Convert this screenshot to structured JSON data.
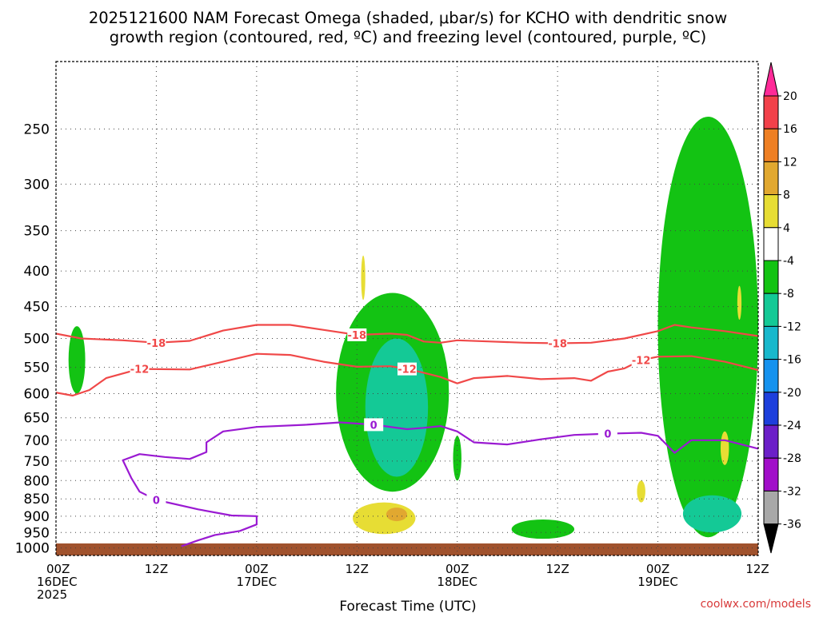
{
  "title_line1": "2025121600 NAM Forecast Omega (shaded, μbar/s) for KCHO with dendritic snow",
  "title_line2": "growth region (contoured, red, ºC) and freezing level (contoured, purple, ºC)",
  "credit": "coolwx.com/models",
  "chart_data": {
    "type": "time-height cross-section",
    "xlabel": "Forecast Time (UTC)",
    "x_ticks": [
      {
        "hour": 0,
        "line1": "00Z",
        "line2": "16DEC",
        "line3": "2025"
      },
      {
        "hour": 12,
        "line1": "12Z",
        "line2": "",
        "line3": ""
      },
      {
        "hour": 24,
        "line1": "00Z",
        "line2": "17DEC",
        "line3": ""
      },
      {
        "hour": 36,
        "line1": "12Z",
        "line2": "",
        "line3": ""
      },
      {
        "hour": 48,
        "line1": "00Z",
        "line2": "18DEC",
        "line3": ""
      },
      {
        "hour": 60,
        "line1": "12Z",
        "line2": "",
        "line3": ""
      },
      {
        "hour": 72,
        "line1": "00Z",
        "line2": "19DEC",
        "line3": ""
      },
      {
        "hour": 84,
        "line1": "12Z",
        "line2": "",
        "line3": ""
      }
    ],
    "xlim_hours": [
      0,
      84
    ],
    "y_ticks_hPa": [
      250,
      300,
      350,
      400,
      450,
      500,
      550,
      600,
      650,
      700,
      750,
      800,
      850,
      900,
      950,
      1000
    ],
    "ylim_hPa": [
      200,
      1025
    ],
    "y_scale": "log-pressure (inverted)",
    "grid": true,
    "colorbar": {
      "unit": "μbar/s",
      "labels": [
        "20",
        "16",
        "12",
        "8",
        "4",
        "-4",
        "-8",
        "-12",
        "-16",
        "-20",
        "-24",
        "-28",
        "-32",
        "-36"
      ],
      "colors": [
        "#ff2a98",
        "#f2414a",
        "#ee7f23",
        "#e1a830",
        "#e7dd34",
        "#ffffff",
        "#13c313",
        "#14c996",
        "#18b8cc",
        "#1592ee",
        "#1d3fdc",
        "#6c1fc8",
        "#a10ec9",
        "#a8a8a8",
        "#000000"
      ]
    },
    "series": [
      {
        "name": "Temperature -18",
        "label": "-18",
        "color": "#f04848",
        "points": [
          [
            0,
            492
          ],
          [
            3,
            500
          ],
          [
            8,
            503
          ],
          [
            12,
            507
          ],
          [
            16,
            504
          ],
          [
            20,
            487
          ],
          [
            24,
            478
          ],
          [
            28,
            478
          ],
          [
            33,
            488
          ],
          [
            36,
            494
          ],
          [
            40,
            492
          ],
          [
            42,
            494
          ],
          [
            44,
            505
          ],
          [
            46,
            507
          ],
          [
            48,
            503
          ],
          [
            52,
            505
          ],
          [
            56,
            507
          ],
          [
            60,
            508
          ],
          [
            64,
            507
          ],
          [
            68,
            500
          ],
          [
            72,
            488
          ],
          [
            74,
            478
          ],
          [
            76,
            482
          ],
          [
            80,
            488
          ],
          [
            84,
            496
          ]
        ],
        "labels_at_hours": [
          13,
          37,
          61
        ]
      },
      {
        "name": "Temperature -12",
        "label": "-12",
        "color": "#f04848",
        "points": [
          [
            0,
            598
          ],
          [
            2,
            604
          ],
          [
            4,
            593
          ],
          [
            6,
            570
          ],
          [
            10,
            553
          ],
          [
            16,
            554
          ],
          [
            20,
            540
          ],
          [
            24,
            526
          ],
          [
            28,
            528
          ],
          [
            32,
            540
          ],
          [
            36,
            549
          ],
          [
            40,
            548
          ],
          [
            42,
            553
          ],
          [
            44,
            560
          ],
          [
            46,
            568
          ],
          [
            48,
            580
          ],
          [
            50,
            570
          ],
          [
            54,
            566
          ],
          [
            58,
            572
          ],
          [
            62,
            570
          ],
          [
            64,
            575
          ],
          [
            66,
            558
          ],
          [
            68,
            552
          ],
          [
            70,
            537
          ],
          [
            72,
            531
          ],
          [
            76,
            530
          ],
          [
            80,
            540
          ],
          [
            84,
            555
          ]
        ],
        "labels_at_hours": [
          9,
          42,
          70
        ]
      },
      {
        "name": "Freezing level 0",
        "label": "0",
        "color": "#9a1ad2",
        "points": [
          [
            15,
            994
          ],
          [
            17,
            975
          ],
          [
            19,
            958
          ],
          [
            22,
            945
          ],
          [
            24,
            925
          ],
          [
            24,
            900
          ],
          [
            21,
            898
          ],
          [
            17,
            880
          ],
          [
            12,
            853
          ],
          [
            10,
            830
          ],
          [
            9,
            793
          ],
          [
            8,
            748
          ],
          [
            10,
            733
          ],
          [
            13,
            740
          ],
          [
            16,
            745
          ],
          [
            18,
            728
          ],
          [
            18,
            705
          ],
          [
            20,
            680
          ],
          [
            24,
            670
          ],
          [
            30,
            665
          ],
          [
            34,
            660
          ],
          [
            38,
            665
          ],
          [
            42,
            675
          ],
          [
            44,
            672
          ],
          [
            46,
            668
          ],
          [
            48,
            680
          ],
          [
            50,
            705
          ],
          [
            54,
            710
          ],
          [
            58,
            698
          ],
          [
            62,
            688
          ],
          [
            66,
            685
          ],
          [
            70,
            683
          ],
          [
            72,
            690
          ],
          [
            74,
            730
          ],
          [
            76,
            700
          ],
          [
            80,
            700
          ],
          [
            82,
            710
          ],
          [
            84,
            720
          ]
        ],
        "labels_at_hours": [
          11,
          39,
          68
        ]
      }
    ],
    "shaded_regions": [
      {
        "level": "-4 to -8",
        "color": "#13c313",
        "hours": [
          1.5,
          3.5
        ],
        "pressure_hPa": [
          480,
          600
        ]
      },
      {
        "level": "-4 to -8",
        "color": "#13c313",
        "hours": [
          33.5,
          47
        ],
        "pressure_hPa": [
          430,
          830
        ]
      },
      {
        "level": "-8 to -12",
        "color": "#14c996",
        "hours": [
          37,
          44.5
        ],
        "pressure_hPa": [
          500,
          790
        ]
      },
      {
        "level": "-4 to -8",
        "color": "#13c313",
        "hours": [
          47.5,
          48.5
        ],
        "pressure_hPa": [
          690,
          800
        ]
      },
      {
        "level": "-4 to -8",
        "color": "#13c313",
        "hours": [
          54.5,
          62
        ],
        "pressure_hPa": [
          910,
          970
        ]
      },
      {
        "level": "-4 to -8",
        "color": "#13c313",
        "hours": [
          72,
          84
        ],
        "pressure_hPa": [
          240,
          965
        ]
      },
      {
        "level": "-8 to -12",
        "color": "#14c996",
        "hours": [
          75,
          82
        ],
        "pressure_hPa": [
          840,
          950
        ]
      },
      {
        "level": "4 to 8",
        "color": "#e7dd34",
        "hours": [
          35.5,
          43
        ],
        "pressure_hPa": [
          860,
          955
        ]
      },
      {
        "level": "8 to 12",
        "color": "#e1a830",
        "hours": [
          39.5,
          42
        ],
        "pressure_hPa": [
          875,
          915
        ]
      },
      {
        "level": "4 to 8",
        "color": "#e7dd34",
        "hours": [
          36.5,
          37
        ],
        "pressure_hPa": [
          380,
          440
        ]
      },
      {
        "level": "4 to 8",
        "color": "#e7dd34",
        "hours": [
          69.5,
          70.5
        ],
        "pressure_hPa": [
          800,
          860
        ]
      },
      {
        "level": "4 to 8",
        "color": "#e7dd34",
        "hours": [
          79.5,
          80.5
        ],
        "pressure_hPa": [
          680,
          760
        ]
      },
      {
        "level": "4 to 8",
        "color": "#e7dd34",
        "hours": [
          81.5,
          82
        ],
        "pressure_hPa": [
          420,
          470
        ]
      }
    ],
    "terrain": {
      "color": "#a0522d",
      "surface_pressure_hPa": 985
    }
  }
}
